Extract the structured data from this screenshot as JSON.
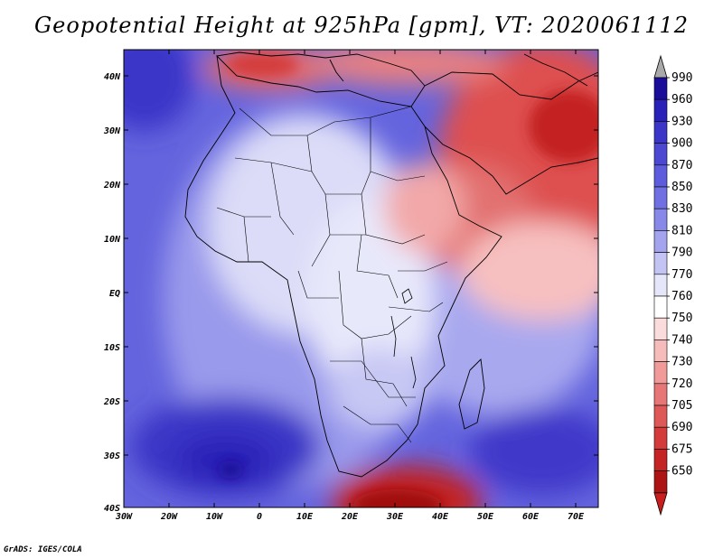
{
  "title": "Geopotential Height at 925hPa [gpm], VT: 2020061112",
  "credit": "GrADS: IGES/COLA",
  "map": {
    "variable": "Geopotential Height",
    "level": "925hPa",
    "units": "gpm",
    "valid_time": "2020061112",
    "lat_labels": [
      "40N",
      "30N",
      "20N",
      "10N",
      "EQ",
      "10S",
      "20S",
      "30S",
      "40S"
    ],
    "lon_labels": [
      "30W",
      "20W",
      "10W",
      "0",
      "10E",
      "20E",
      "30E",
      "40E",
      "50E",
      "60E",
      "70E"
    ]
  },
  "colorbar": {
    "levels": [
      "990",
      "960",
      "930",
      "900",
      "870",
      "850",
      "830",
      "810",
      "790",
      "770",
      "760",
      "750",
      "740",
      "730",
      "720",
      "705",
      "690",
      "675",
      "650"
    ],
    "colors": [
      "#1a0d9a",
      "#2a22b8",
      "#3b35c8",
      "#4c48d2",
      "#5d5cdc",
      "#7070e2",
      "#8888e8",
      "#a4a4ee",
      "#c4c4f4",
      "#e6e6fa",
      "#ffffff",
      "#fbdcdc",
      "#f6bcbc",
      "#f09a9a",
      "#e77676",
      "#de5858",
      "#d43c3c",
      "#c42424",
      "#ad1414",
      "#8e0606"
    ],
    "top_arrow_color": "#a9a9a9",
    "bottom_arrow_color": "#c81e1e"
  }
}
